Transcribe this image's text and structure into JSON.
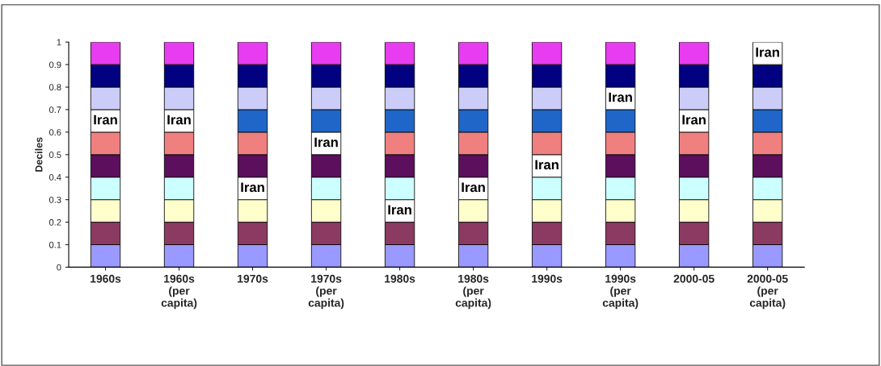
{
  "chart_data": {
    "type": "bar",
    "stacked": true,
    "ylabel": "Deciles",
    "categories": [
      "1960s",
      "1960s\n(per\ncapita)",
      "1970s",
      "1970s\n(per\ncapita)",
      "1980s",
      "1980s\n(per\ncapita)",
      "1990s",
      "1990s\n(per\ncapita)",
      "2000-05",
      "2000-05\n(per\ncapita)"
    ],
    "series": [
      {
        "color": "#9999ff",
        "values": [
          0.1,
          0.1,
          0.1,
          0.1,
          0.1,
          0.1,
          0.1,
          0.1,
          0.1,
          0.1
        ]
      },
      {
        "color": "#8b3a62",
        "values": [
          0.1,
          0.1,
          0.1,
          0.1,
          0.1,
          0.1,
          0.1,
          0.1,
          0.1,
          0.1
        ]
      },
      {
        "values": [
          0.1,
          0.1,
          0.1,
          0.1,
          0.1,
          0.1,
          0.1,
          0.1,
          0.1,
          0.1
        ],
        "colors": [
          "#ffffcc",
          "#ffffcc",
          "#ffffcc",
          "#ffffcc",
          "#ffffff",
          "#ffffcc",
          "#ffffcc",
          "#ffffcc",
          "#ffffcc",
          "#ffffcc"
        ],
        "value_labels": [
          null,
          null,
          null,
          null,
          "Iran",
          null,
          null,
          null,
          null,
          null
        ]
      },
      {
        "values": [
          0.1,
          0.1,
          0.1,
          0.1,
          0.1,
          0.1,
          0.1,
          0.1,
          0.1,
          0.1
        ],
        "colors": [
          "#ccffff",
          "#ccffff",
          "#ffffff",
          "#ccffff",
          "#ccffff",
          "#ffffff",
          "#ccffff",
          "#ccffff",
          "#ccffff",
          "#ccffff"
        ],
        "value_labels": [
          null,
          null,
          "Iran",
          null,
          null,
          "Iran",
          null,
          null,
          null,
          null
        ]
      },
      {
        "values": [
          0.1,
          0.1,
          0.1,
          0.1,
          0.1,
          0.1,
          0.1,
          0.1,
          0.1,
          0.1
        ],
        "colors": [
          "#5c0f5c",
          "#5c0f5c",
          "#5c0f5c",
          "#5c0f5c",
          "#5c0f5c",
          "#5c0f5c",
          "#ffffff",
          "#5c0f5c",
          "#5c0f5c",
          "#5c0f5c"
        ],
        "value_labels": [
          null,
          null,
          null,
          null,
          null,
          null,
          "Iran",
          null,
          null,
          null
        ]
      },
      {
        "values": [
          0.1,
          0.1,
          0.1,
          0.1,
          0.1,
          0.1,
          0.1,
          0.1,
          0.1,
          0.1
        ],
        "colors": [
          "#f08080",
          "#f08080",
          "#f08080",
          "#ffffff",
          "#f08080",
          "#f08080",
          "#f08080",
          "#f08080",
          "#f08080",
          "#f08080"
        ],
        "value_labels": [
          null,
          null,
          null,
          "Iran",
          null,
          null,
          null,
          null,
          null,
          null
        ]
      },
      {
        "values": [
          0.1,
          0.1,
          0.1,
          0.1,
          0.1,
          0.1,
          0.1,
          0.1,
          0.1,
          0.1
        ],
        "colors": [
          "#ffffff",
          "#ffffff",
          "#1f66c8",
          "#1f66c8",
          "#1f66c8",
          "#1f66c8",
          "#1f66c8",
          "#1f66c8",
          "#ffffff",
          "#1f66c8"
        ],
        "value_labels": [
          "Iran",
          "Iran",
          null,
          null,
          null,
          null,
          null,
          null,
          "Iran",
          null
        ]
      },
      {
        "values": [
          0.1,
          0.1,
          0.1,
          0.1,
          0.1,
          0.1,
          0.1,
          0.1,
          0.1,
          0.1
        ],
        "colors": [
          "#ccccf8",
          "#ccccf8",
          "#ccccf8",
          "#ccccf8",
          "#ccccf8",
          "#ccccf8",
          "#ccccf8",
          "#ffffff",
          "#ccccf8",
          "#ccccf8"
        ],
        "value_labels": [
          null,
          null,
          null,
          null,
          null,
          null,
          null,
          "Iran",
          null,
          null
        ]
      },
      {
        "color": "#000080",
        "values": [
          0.1,
          0.1,
          0.1,
          0.1,
          0.1,
          0.1,
          0.1,
          0.1,
          0.1,
          0.1
        ]
      },
      {
        "values": [
          0.1,
          0.1,
          0.1,
          0.1,
          0.1,
          0.1,
          0.1,
          0.1,
          0.1,
          0.1
        ],
        "colors": [
          "#e83cf0",
          "#e83cf0",
          "#e83cf0",
          "#e83cf0",
          "#e83cf0",
          "#e83cf0",
          "#e83cf0",
          "#e83cf0",
          "#e83cf0",
          "#ffffff"
        ],
        "value_labels": [
          null,
          null,
          null,
          null,
          null,
          null,
          null,
          null,
          null,
          "Iran"
        ]
      }
    ],
    "ylim": [
      0,
      1
    ],
    "yticks": [
      0,
      0.1,
      0.2,
      0.3,
      0.4,
      0.5,
      0.6,
      0.7,
      0.8,
      0.9,
      1
    ],
    "grid": false,
    "legend": false
  }
}
